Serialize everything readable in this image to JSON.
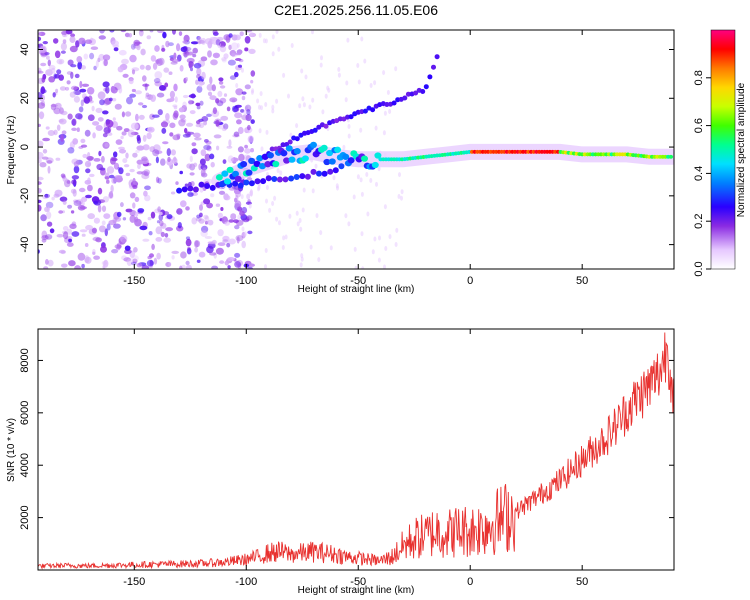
{
  "title": "C2E1.2025.256.11.05.E06",
  "chart_data": [
    {
      "type": "heatmap",
      "title": "",
      "xlabel": "Height of straight line (km)",
      "ylabel": "Frequency (Hz)",
      "xlim": [
        -193,
        91
      ],
      "ylim": [
        -50,
        48
      ],
      "xticks": [
        -150,
        -100,
        -50,
        0,
        50
      ],
      "xtick_labels": [
        "-150",
        "-100",
        "-50",
        "0",
        "50"
      ],
      "yticks": [
        -40,
        -20,
        0,
        20,
        40
      ],
      "ytick_labels": [
        "-40",
        "-20",
        "0",
        "20",
        "40"
      ],
      "colorbar": {
        "label": "Normalized spectral amplitude",
        "range": [
          0,
          1
        ],
        "ticks": [
          0.0,
          0.2,
          0.4,
          0.6,
          0.8
        ],
        "tick_labels": [
          "0.0",
          "0.2",
          "0.4",
          "0.6",
          "0.8"
        ],
        "colormap": "rainbow (white-violet-blue-cyan-green-yellow-orange-red-magenta)"
      },
      "features": {
        "main_trace": [
          [
            -112,
            -14
          ],
          [
            -100,
            -9
          ],
          [
            -90,
            -6
          ],
          [
            -80,
            -3
          ],
          [
            -70,
            -2
          ],
          [
            -60,
            -4
          ],
          [
            -50,
            -5
          ],
          [
            -40,
            -5
          ],
          [
            -30,
            -5
          ],
          [
            -20,
            -4
          ],
          [
            -10,
            -3
          ],
          [
            0,
            -2
          ],
          [
            10,
            -2
          ],
          [
            20,
            -2
          ],
          [
            30,
            -2
          ],
          [
            40,
            -2
          ],
          [
            50,
            -3
          ],
          [
            60,
            -3
          ],
          [
            70,
            -3
          ],
          [
            80,
            -4
          ],
          [
            90,
            -4
          ]
        ],
        "upper_branch": [
          [
            -90,
            -2
          ],
          [
            -75,
            5
          ],
          [
            -60,
            11
          ],
          [
            -50,
            14
          ],
          [
            -40,
            17
          ],
          [
            -30,
            20
          ],
          [
            -20,
            24
          ],
          [
            -16,
            33
          ],
          [
            -14,
            40
          ]
        ],
        "lower_branch": [
          [
            -130,
            -17
          ],
          [
            -115,
            -16
          ],
          [
            -100,
            -15
          ],
          [
            -85,
            -13
          ],
          [
            -70,
            -11
          ],
          [
            -55,
            -8
          ]
        ],
        "noise_region_x": [
          -193,
          -105
        ]
      }
    },
    {
      "type": "line",
      "title": "",
      "xlabel": "Height of straight line (km)",
      "ylabel": "SNR (10 * v/v)",
      "xlim": [
        -193,
        91
      ],
      "ylim": [
        0,
        9200
      ],
      "xticks": [
        -150,
        -100,
        -50,
        0,
        50
      ],
      "xtick_labels": [
        "-150",
        "-100",
        "-50",
        "0",
        "50"
      ],
      "yticks": [
        2000,
        4000,
        6000,
        8000
      ],
      "ytick_labels": [
        "2000",
        "4000",
        "6000",
        "8000"
      ],
      "series": [
        {
          "name": "SNR",
          "color": "#e8312f",
          "x": [
            -193,
            -180,
            -170,
            -160,
            -150,
            -140,
            -130,
            -120,
            -110,
            -100,
            -95,
            -90,
            -85,
            -80,
            -75,
            -70,
            -65,
            -60,
            -55,
            -50,
            -45,
            -40,
            -35,
            -30,
            -25,
            -20,
            -15,
            -10,
            -5,
            0,
            5,
            10,
            15,
            20,
            25,
            30,
            35,
            40,
            45,
            50,
            55,
            60,
            65,
            70,
            75,
            80,
            85,
            88,
            91
          ],
          "y": [
            150,
            170,
            160,
            180,
            200,
            220,
            230,
            250,
            300,
            400,
            500,
            650,
            700,
            600,
            650,
            700,
            650,
            600,
            500,
            450,
            400,
            350,
            500,
            900,
            1200,
            1300,
            1500,
            1400,
            1500,
            1500,
            1600,
            1800,
            2000,
            2200,
            2500,
            2800,
            3100,
            3400,
            3800,
            4200,
            4600,
            5000,
            5500,
            6100,
            6600,
            7000,
            7600,
            8600,
            6500
          ]
        }
      ]
    }
  ]
}
